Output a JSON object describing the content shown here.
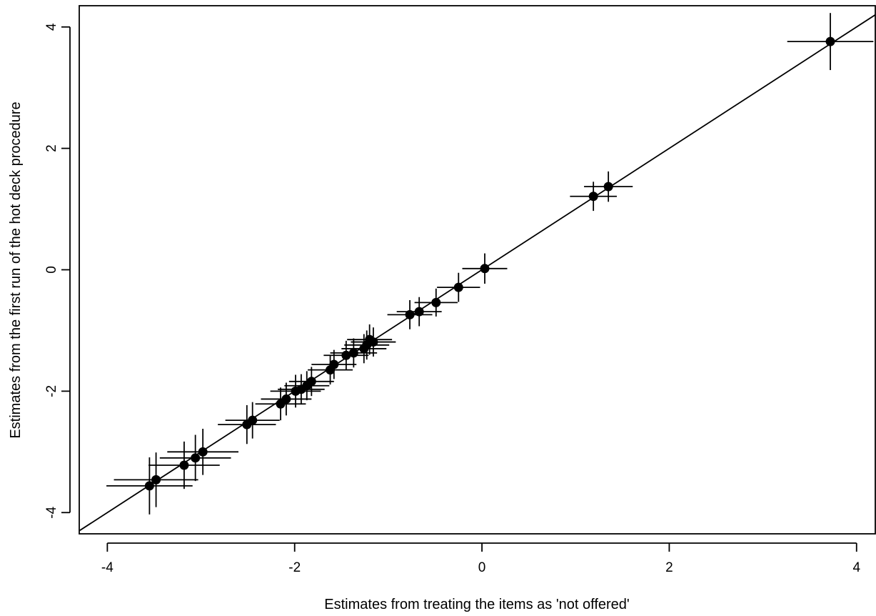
{
  "chart_data": {
    "type": "scatter",
    "title": "",
    "xlabel": "Estimates from treating the items as 'not offered'",
    "ylabel": "Estimates from the first run of the hot deck procedure",
    "xlim": [
      -4.3,
      4.2
    ],
    "ylim": [
      -4.35,
      4.35
    ],
    "xticks": [
      "-4",
      "-2",
      "0",
      "2",
      "4"
    ],
    "yticks": [
      "-4",
      "-2",
      "0",
      "2",
      "4"
    ],
    "xtick_values": [
      -4,
      -2,
      0,
      2,
      4
    ],
    "ytick_values": [
      -4,
      -2,
      0,
      2,
      4
    ],
    "grid": false,
    "reference_line": "y = x",
    "point_color": "#000000",
    "points": [
      {
        "x": 3.72,
        "y": 3.76,
        "xerr": 0.46,
        "yerr": 0.47
      },
      {
        "x": 1.35,
        "y": 1.37,
        "xerr": 0.26,
        "yerr": 0.25
      },
      {
        "x": 1.19,
        "y": 1.21,
        "xerr": 0.25,
        "yerr": 0.24
      },
      {
        "x": 0.03,
        "y": 0.02,
        "xerr": 0.24,
        "yerr": 0.25
      },
      {
        "x": -0.25,
        "y": -0.29,
        "xerr": 0.23,
        "yerr": 0.24
      },
      {
        "x": -0.49,
        "y": -0.54,
        "xerr": 0.23,
        "yerr": 0.23
      },
      {
        "x": -0.67,
        "y": -0.69,
        "xerr": 0.24,
        "yerr": 0.24
      },
      {
        "x": -0.77,
        "y": -0.74,
        "xerr": 0.24,
        "yerr": 0.24
      },
      {
        "x": -1.16,
        "y": -1.19,
        "xerr": 0.24,
        "yerr": 0.24
      },
      {
        "x": -1.2,
        "y": -1.15,
        "xerr": 0.24,
        "yerr": 0.25
      },
      {
        "x": -1.23,
        "y": -1.24,
        "xerr": 0.24,
        "yerr": 0.24
      },
      {
        "x": -1.26,
        "y": -1.3,
        "xerr": 0.24,
        "yerr": 0.24
      },
      {
        "x": -1.37,
        "y": -1.37,
        "xerr": 0.25,
        "yerr": 0.24
      },
      {
        "x": -1.45,
        "y": -1.41,
        "xerr": 0.24,
        "yerr": 0.24
      },
      {
        "x": -1.58,
        "y": -1.56,
        "xerr": 0.24,
        "yerr": 0.24
      },
      {
        "x": -1.62,
        "y": -1.65,
        "xerr": 0.24,
        "yerr": 0.24
      },
      {
        "x": -1.82,
        "y": -1.84,
        "xerr": 0.24,
        "yerr": 0.24
      },
      {
        "x": -1.87,
        "y": -1.91,
        "xerr": 0.24,
        "yerr": 0.24
      },
      {
        "x": -1.93,
        "y": -1.97,
        "xerr": 0.25,
        "yerr": 0.25
      },
      {
        "x": -1.99,
        "y": -2.0,
        "xerr": 0.27,
        "yerr": 0.27
      },
      {
        "x": -2.09,
        "y": -2.13,
        "xerr": 0.27,
        "yerr": 0.27
      },
      {
        "x": -2.15,
        "y": -2.21,
        "xerr": 0.27,
        "yerr": 0.27
      },
      {
        "x": -2.45,
        "y": -2.48,
        "xerr": 0.29,
        "yerr": 0.3
      },
      {
        "x": -2.51,
        "y": -2.55,
        "xerr": 0.31,
        "yerr": 0.32
      },
      {
        "x": -2.98,
        "y": -3.0,
        "xerr": 0.38,
        "yerr": 0.38
      },
      {
        "x": -3.06,
        "y": -3.1,
        "xerr": 0.38,
        "yerr": 0.38
      },
      {
        "x": -3.18,
        "y": -3.22,
        "xerr": 0.38,
        "yerr": 0.39
      },
      {
        "x": -3.48,
        "y": -3.46,
        "xerr": 0.45,
        "yerr": 0.45
      },
      {
        "x": -3.55,
        "y": -3.56,
        "xerr": 0.46,
        "yerr": 0.47
      }
    ]
  }
}
